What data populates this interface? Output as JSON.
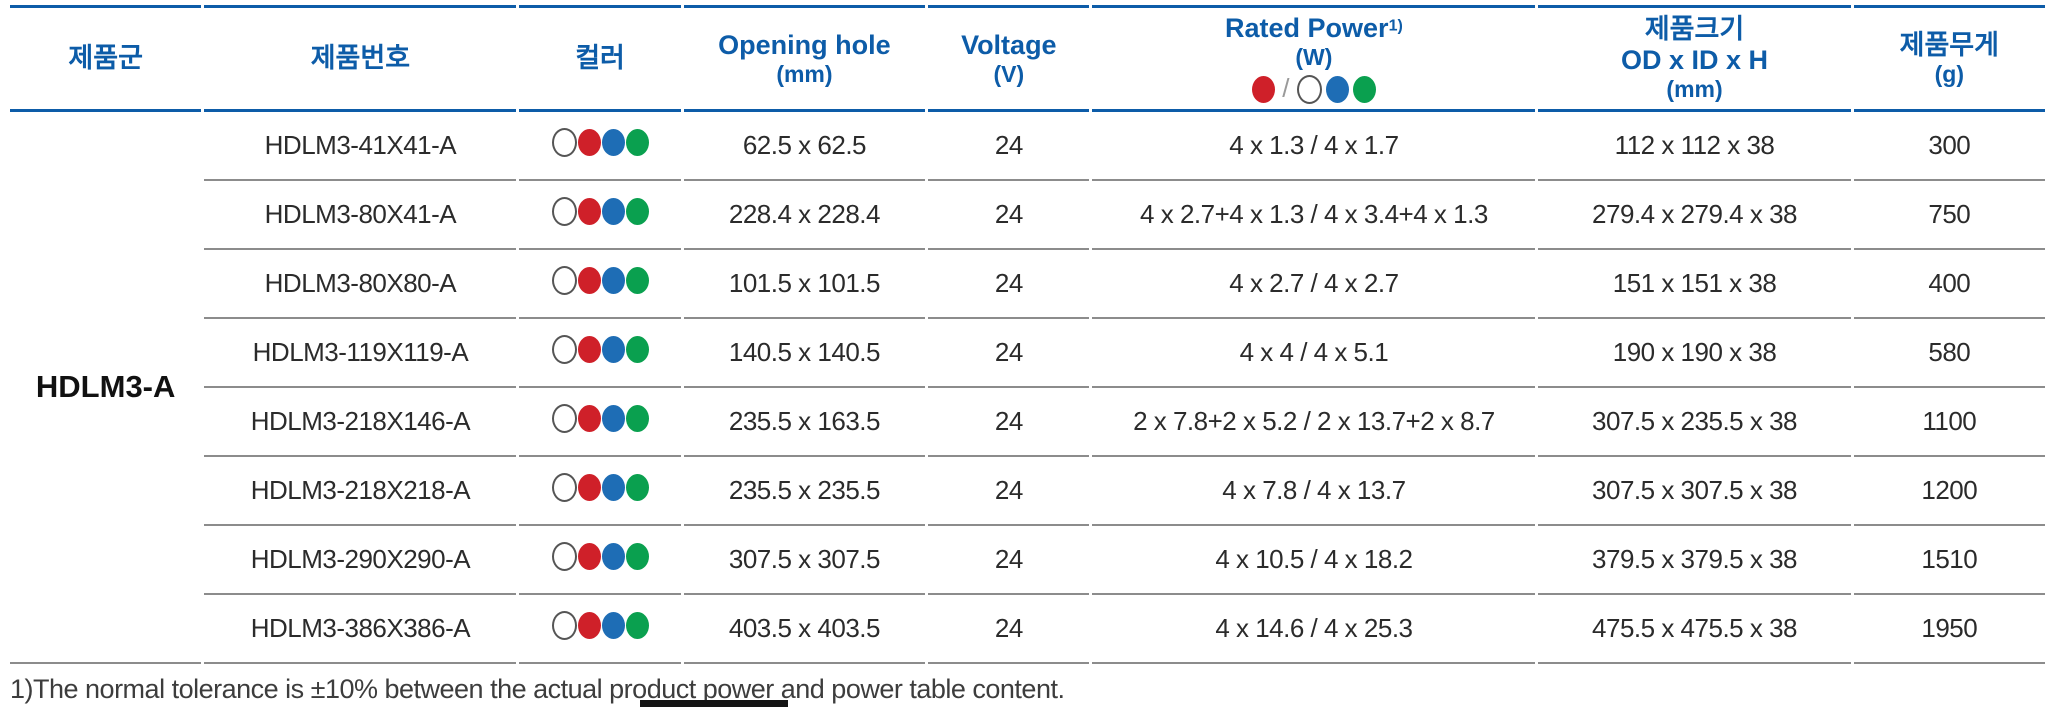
{
  "colors": {
    "accent_blue": "#0d5ca8",
    "dot_red": "#cf2029",
    "dot_blue": "#1e6db5",
    "dot_green": "#0aa04f",
    "dot_outline": "#555555",
    "row_divider": "#8c8c8c",
    "body_text": "#2b2b2b"
  },
  "table": {
    "family": "HDLM3-A",
    "columns": [
      {
        "label": "제품군"
      },
      {
        "label": "제품번호"
      },
      {
        "label": "컬러"
      },
      {
        "label": "Opening hole",
        "sub": "(mm)"
      },
      {
        "label": "Voltage",
        "sub": "(V)"
      },
      {
        "label": "Rated Power",
        "sup": "1)",
        "sub": "(W)",
        "legend_slash": "/"
      },
      {
        "label": "제품크기",
        "line2": "OD x ID x H",
        "sub": "(mm)"
      },
      {
        "label": "제품무게",
        "sub": "(g)"
      }
    ],
    "color_legend": [
      "red-dot",
      "slash",
      "white-dot",
      "blue-dot",
      "green-dot"
    ],
    "row_color_dots": [
      "white-dot",
      "red-dot",
      "blue-dot",
      "green-dot"
    ],
    "rows": [
      {
        "part": "HDLM3-41X41-A",
        "opening": "62.5 x 62.5",
        "voltage": "24",
        "power": "4 x 1.3 / 4 x 1.7",
        "size": "112 x 112 x 38",
        "weight": "300"
      },
      {
        "part": "HDLM3-80X41-A",
        "opening": "228.4 x 228.4",
        "voltage": "24",
        "power": "4 x 2.7+4 x 1.3 / 4 x 3.4+4 x 1.3",
        "size": "279.4 x 279.4 x 38",
        "weight": "750"
      },
      {
        "part": "HDLM3-80X80-A",
        "opening": "101.5 x 101.5",
        "voltage": "24",
        "power": "4 x 2.7 / 4 x 2.7",
        "size": "151 x 151 x 38",
        "weight": "400"
      },
      {
        "part": "HDLM3-119X119-A",
        "opening": "140.5 x 140.5",
        "voltage": "24",
        "power": "4 x 4 / 4 x 5.1",
        "size": "190 x 190 x 38",
        "weight": "580"
      },
      {
        "part": "HDLM3-218X146-A",
        "opening": "235.5 x 163.5",
        "voltage": "24",
        "power": "2 x 7.8+2 x 5.2 / 2 x 13.7+2 x 8.7",
        "size": "307.5 x 235.5 x 38",
        "weight": "1100"
      },
      {
        "part": "HDLM3-218X218-A",
        "opening": "235.5 x 235.5",
        "voltage": "24",
        "power": "4 x 7.8 / 4 x 13.7",
        "size": "307.5 x 307.5 x 38",
        "weight": "1200"
      },
      {
        "part": "HDLM3-290X290-A",
        "opening": "307.5 x 307.5",
        "voltage": "24",
        "power": "4 x 10.5 / 4 x 18.2",
        "size": "379.5 x 379.5 x 38",
        "weight": "1510"
      },
      {
        "part": "HDLM3-386X386-A",
        "opening": "403.5 x 403.5",
        "voltage": "24",
        "power": "4 x 14.6 / 4 x 25.3",
        "size": "475.5 x 475.5 x 38",
        "weight": "1950"
      }
    ],
    "footnote": "1)The normal tolerance is ±10% between the actual product power and power table content."
  }
}
